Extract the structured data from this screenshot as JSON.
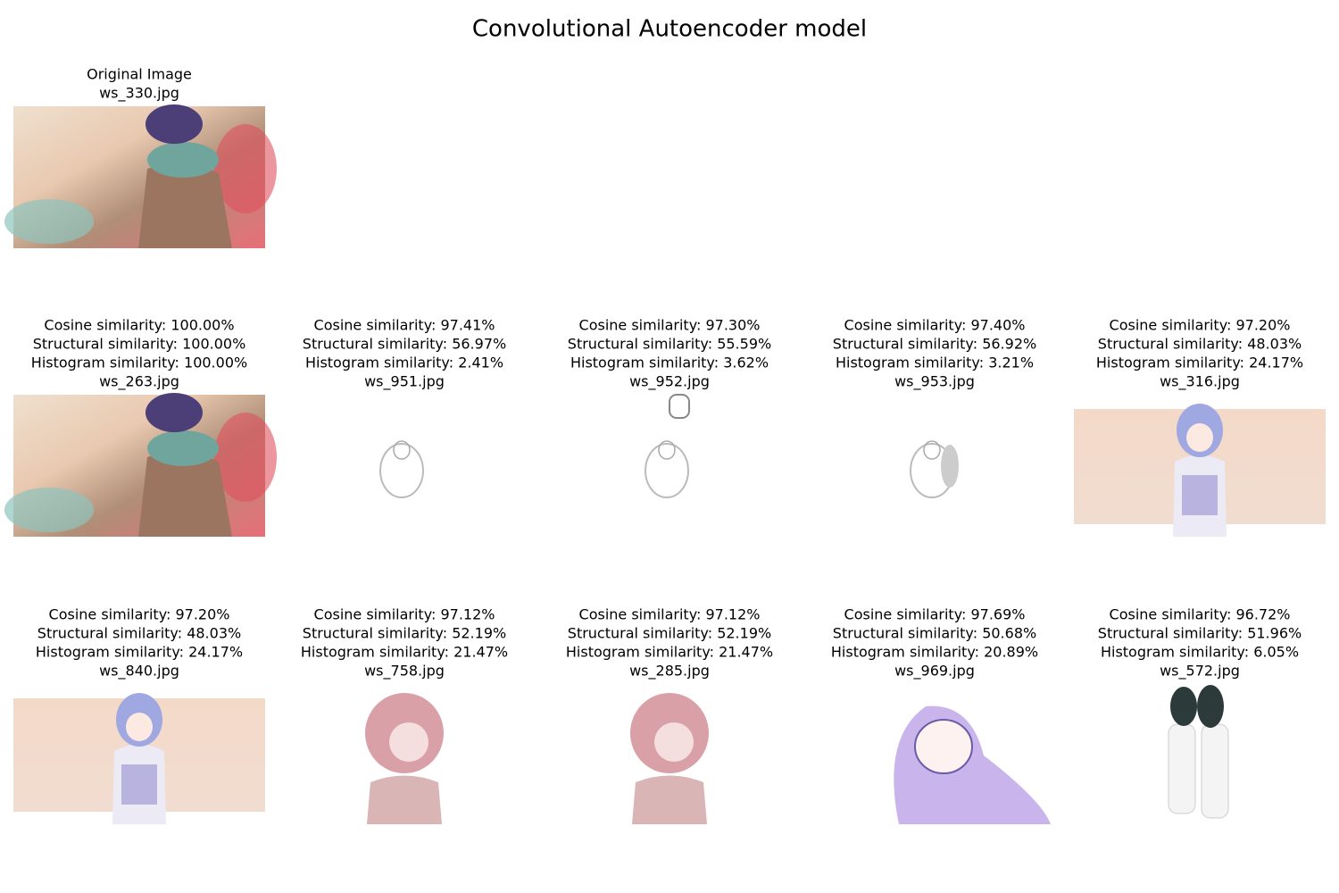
{
  "title": "Convolutional Autoencoder model",
  "original": {
    "label": "Original Image",
    "file": "ws_330.jpg"
  },
  "results": [
    {
      "cosine": "Cosine similarity: 100.00%",
      "structural": "Structural similarity: 100.00%",
      "histogram": "Histogram similarity: 100.00%",
      "file": "ws_263.jpg"
    },
    {
      "cosine": "Cosine similarity: 97.41%",
      "structural": "Structural similarity: 56.97%",
      "histogram": "Histogram similarity: 2.41%",
      "file": "ws_951.jpg"
    },
    {
      "cosine": "Cosine similarity: 97.30%",
      "structural": "Structural similarity: 55.59%",
      "histogram": "Histogram similarity: 3.62%",
      "file": "ws_952.jpg"
    },
    {
      "cosine": "Cosine similarity: 97.40%",
      "structural": "Structural similarity: 56.92%",
      "histogram": "Histogram similarity: 3.21%",
      "file": "ws_953.jpg"
    },
    {
      "cosine": "Cosine similarity: 97.20%",
      "structural": "Structural similarity: 48.03%",
      "histogram": "Histogram similarity: 24.17%",
      "file": "ws_316.jpg"
    },
    {
      "cosine": "Cosine similarity: 97.20%",
      "structural": "Structural similarity: 48.03%",
      "histogram": "Histogram similarity: 24.17%",
      "file": "ws_840.jpg"
    },
    {
      "cosine": "Cosine similarity: 97.12%",
      "structural": "Structural similarity: 52.19%",
      "histogram": "Histogram similarity: 21.47%",
      "file": "ws_758.jpg"
    },
    {
      "cosine": "Cosine similarity: 97.12%",
      "structural": "Structural similarity: 52.19%",
      "histogram": "Histogram similarity: 21.47%",
      "file": "ws_285.jpg"
    },
    {
      "cosine": "Cosine similarity: 97.69%",
      "structural": "Structural similarity: 50.68%",
      "histogram": "Histogram similarity: 20.89%",
      "file": "ws_969.jpg"
    },
    {
      "cosine": "Cosine similarity: 96.72%",
      "structural": "Structural similarity: 51.96%",
      "histogram": "Histogram similarity: 6.05%",
      "file": "ws_572.jpg"
    }
  ]
}
